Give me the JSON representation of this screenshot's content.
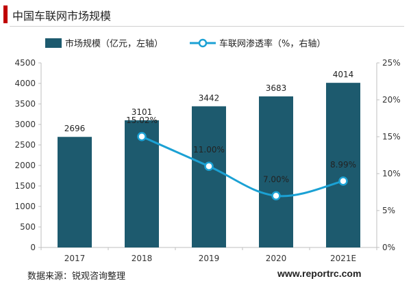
{
  "title": "中国车联网市场规模",
  "chart_data": {
    "type": "bar",
    "categories": [
      "2017",
      "2018",
      "2019",
      "2020",
      "2021E"
    ],
    "series": [
      {
        "name": "市场规模（亿元，左轴）",
        "type": "bar",
        "axis": "left",
        "values": [
          2696,
          3101,
          3442,
          3683,
          4014
        ],
        "labels": [
          "2696",
          "3101",
          "3442",
          "3683",
          "4014"
        ],
        "color": "#1d5a6e"
      },
      {
        "name": "车联网渗透率（%，右轴）",
        "type": "line",
        "axis": "right",
        "x": [
          "2018",
          "2019",
          "2020",
          "2021E"
        ],
        "values": [
          15.02,
          11.0,
          7.0,
          8.99
        ],
        "labels": [
          "15.02%",
          "11.00%",
          "7.00%",
          "8.99%"
        ],
        "color": "#1ba1d4"
      }
    ],
    "y_left": {
      "range": [
        0,
        4500
      ],
      "ticks": [
        "0",
        "500",
        "1000",
        "1500",
        "2000",
        "2500",
        "3000",
        "3500",
        "4000",
        "4500"
      ]
    },
    "y_right": {
      "range": [
        0,
        25
      ],
      "ticks": [
        "0%",
        "5%",
        "10%",
        "15%",
        "20%",
        "25%"
      ]
    },
    "legend_position": "top",
    "grid": false
  },
  "footer": {
    "source": "数据来源：锐观咨询整理",
    "site": "www.reportrc.com"
  }
}
